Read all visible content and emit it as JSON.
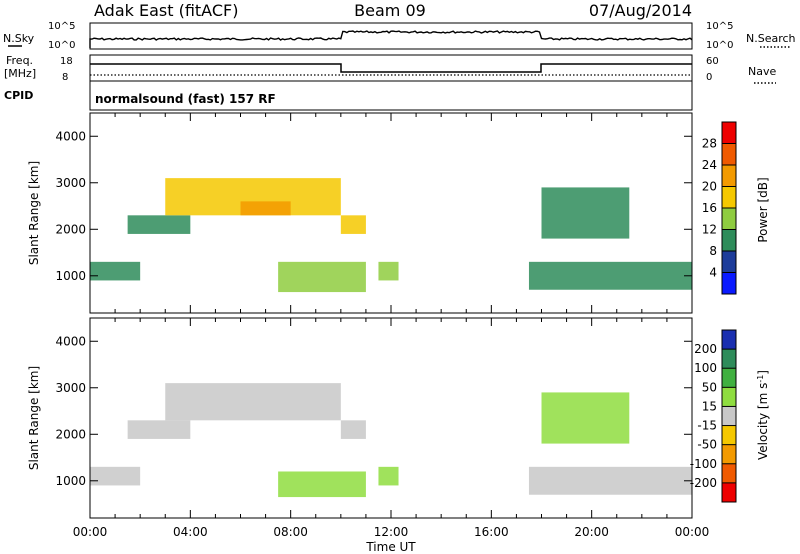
{
  "header": {
    "site": "Adak East (fitACF)",
    "beam": "Beam 09",
    "date": "07/Aug/2014"
  },
  "summary_panels": {
    "nsky_label": "N.Sky",
    "nsearch_label": "N.Search",
    "noise_ticks": [
      "10^5",
      "10^0"
    ],
    "freq_label_1": "Freq.",
    "freq_label_2": "[MHz]",
    "freq_ticks": [
      "18",
      "8"
    ],
    "nave_label": "Nave",
    "nave_ticks": [
      "60",
      "0"
    ],
    "cpid_label": "CPID",
    "cpid_text": "normalsound (fast) 157 RF"
  },
  "colorbars": {
    "power": {
      "label": "Power [dB]",
      "ticks": [
        "28",
        "24",
        "20",
        "16",
        "12",
        "8",
        "4"
      ],
      "colors": [
        "#ee0000",
        "#f05a00",
        "#f39a00",
        "#f5c800",
        "#8fcc40",
        "#2e8c5a",
        "#1d3c9a",
        "#0a1aff"
      ]
    },
    "velocity": {
      "label": "Velocity [m s",
      "label_sup": "-1",
      "label_end": "]",
      "ticks": [
        "200",
        "100",
        "50",
        "15",
        "-15",
        "-50",
        "-100",
        "-200"
      ],
      "colors": [
        "#1a2fb0",
        "#2e8c5a",
        "#40b040",
        "#8fdd40",
        "#c8c8c8",
        "#f5c800",
        "#f39a00",
        "#f05a00",
        "#ee0000"
      ]
    }
  },
  "chart_data": [
    {
      "type": "heatmap",
      "title": "Power",
      "ylabel": "Slant Range [km]",
      "xlabel": "",
      "yticks": [
        "1000",
        "2000",
        "3000",
        "4000"
      ],
      "ylim": [
        200,
        4500
      ],
      "xlim": [
        "00:00",
        "24:00"
      ],
      "echo_regions": [
        {
          "t_start": 0.0,
          "t_end": 2.0,
          "r_min": 900,
          "r_max": 1300,
          "power_db": 8
        },
        {
          "t_start": 1.5,
          "t_end": 4.0,
          "r_min": 1900,
          "r_max": 2300,
          "power_db": 10
        },
        {
          "t_start": 3.0,
          "t_end": 10.0,
          "r_min": 2300,
          "r_max": 3100,
          "power_db": 16
        },
        {
          "t_start": 6.0,
          "t_end": 8.0,
          "r_min": 2300,
          "r_max": 2600,
          "power_db": 22
        },
        {
          "t_start": 7.5,
          "t_end": 11.0,
          "r_min": 650,
          "r_max": 1300,
          "power_db": 12
        },
        {
          "t_start": 10.0,
          "t_end": 11.0,
          "r_min": 1900,
          "r_max": 2300,
          "power_db": 18
        },
        {
          "t_start": 11.5,
          "t_end": 12.3,
          "r_min": 900,
          "r_max": 1300,
          "power_db": 14
        },
        {
          "t_start": 17.5,
          "t_end": 24.0,
          "r_min": 700,
          "r_max": 1300,
          "power_db": 10
        },
        {
          "t_start": 18.0,
          "t_end": 21.5,
          "r_min": 1800,
          "r_max": 2900,
          "power_db": 8
        }
      ]
    },
    {
      "type": "heatmap",
      "title": "Velocity",
      "ylabel": "Slant Range [km]",
      "xlabel": "Time UT",
      "yticks": [
        "1000",
        "2000",
        "3000",
        "4000"
      ],
      "xticks": [
        "00:00",
        "04:00",
        "08:00",
        "12:00",
        "16:00",
        "20:00",
        "00:00"
      ],
      "ylim": [
        200,
        4500
      ],
      "xlim": [
        "00:00",
        "24:00"
      ],
      "echo_regions": [
        {
          "t_start": 0.0,
          "t_end": 2.0,
          "r_min": 900,
          "r_max": 1300,
          "velocity": 0
        },
        {
          "t_start": 1.5,
          "t_end": 4.0,
          "r_min": 1900,
          "r_max": 2300,
          "velocity": 0
        },
        {
          "t_start": 3.0,
          "t_end": 10.0,
          "r_min": 2300,
          "r_max": 3100,
          "velocity": 0
        },
        {
          "t_start": 7.5,
          "t_end": 11.0,
          "r_min": 650,
          "r_max": 1200,
          "velocity": 40
        },
        {
          "t_start": 10.0,
          "t_end": 11.0,
          "r_min": 1900,
          "r_max": 2300,
          "velocity": 0
        },
        {
          "t_start": 11.5,
          "t_end": 12.3,
          "r_min": 900,
          "r_max": 1300,
          "velocity": 40
        },
        {
          "t_start": 17.5,
          "t_end": 24.0,
          "r_min": 700,
          "r_max": 1300,
          "velocity": 0
        },
        {
          "t_start": 18.0,
          "t_end": 21.5,
          "r_min": 1800,
          "r_max": 2900,
          "velocity": 20
        }
      ]
    }
  ]
}
